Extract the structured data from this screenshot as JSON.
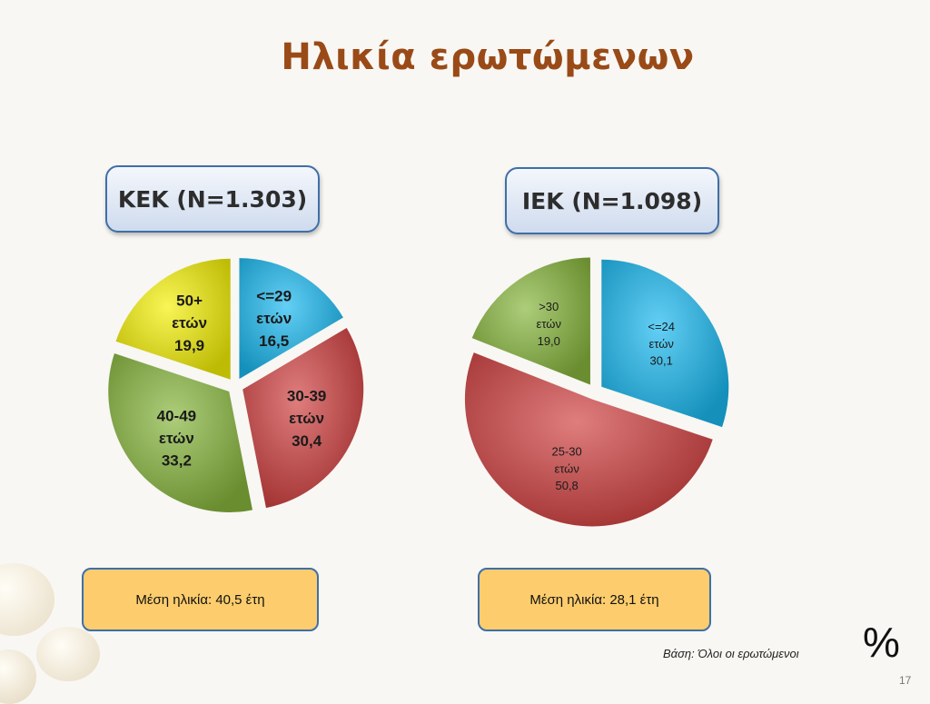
{
  "title": "Ηλικία ερωτώμενων",
  "footer": {
    "base": "Βάση: Όλοι οι ερωτώμενοι",
    "unit": "%",
    "page": "17"
  },
  "groups": [
    {
      "label": "ΚΕΚ (Ν=1.303)",
      "mean": "Μέση ηλικία: 40,5 έτη"
    },
    {
      "label": "ΙΕΚ (Ν=1.098)",
      "mean": "Μέση ηλικία: 28,1 έτη"
    }
  ],
  "chart_data": [
    {
      "type": "pie",
      "title": "ΚΕΚ (Ν=1.303)",
      "unit": "%",
      "slices": [
        {
          "label": "<=29 ετών",
          "value": 16.5,
          "display": "16,5",
          "color": "#19b8f0"
        },
        {
          "label": "30-39 ετών",
          "value": 30.4,
          "display": "30,4",
          "color": "#d04040"
        },
        {
          "label": "40-49 ετών",
          "value": 33.2,
          "display": "33,2",
          "color": "#86b53c"
        },
        {
          "label": "50+ ετών",
          "value": 19.9,
          "display": "19,9",
          "color": "#f4f007"
        }
      ]
    },
    {
      "type": "pie",
      "title": "ΙΕΚ (Ν=1.098)",
      "unit": "%",
      "slices": [
        {
          "label": "<=24 ετών",
          "value": 30.1,
          "display": "30,1",
          "color": "#19b8f0"
        },
        {
          "label": "25-30 ετών",
          "value": 50.8,
          "display": "50,8",
          "color": "#d04040"
        },
        {
          "label": ">30 ετών",
          "value": 19.0,
          "display": "19,0",
          "color": "#86b53c"
        }
      ]
    }
  ]
}
